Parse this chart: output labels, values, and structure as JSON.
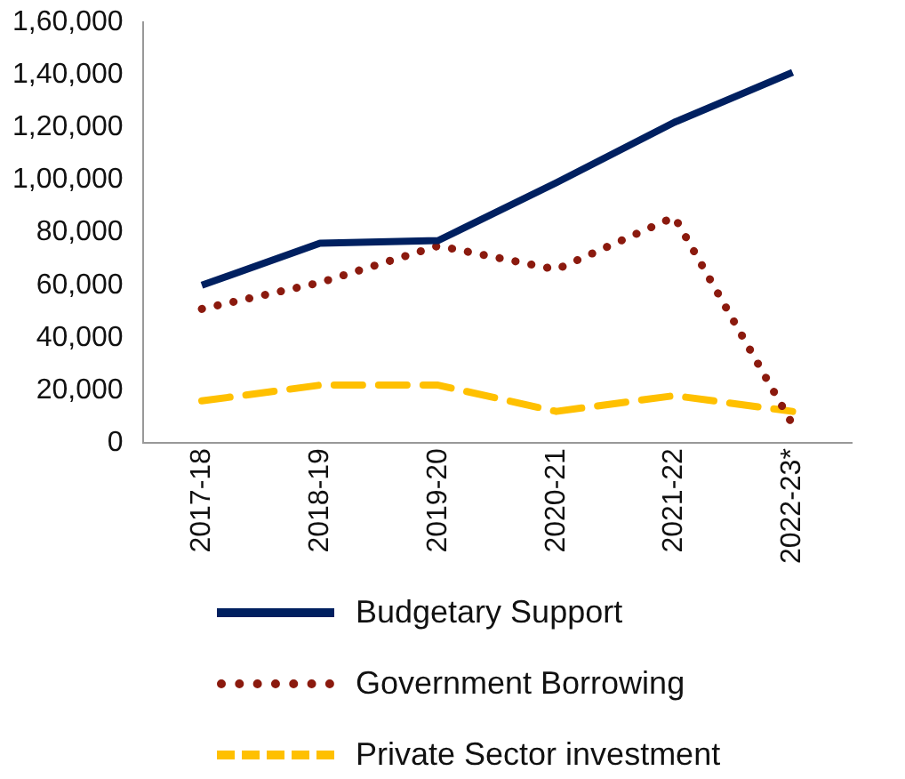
{
  "chart_data": {
    "type": "line",
    "categories": [
      "2017-18",
      "2018-19",
      "2019-20",
      "2020-21",
      "2021-22",
      "2022-23*"
    ],
    "ylim": [
      0,
      160000
    ],
    "yticks": [
      0,
      {
        "value": 20000,
        "label": "20,000"
      },
      {
        "value": 40000,
        "label": "40,000"
      },
      {
        "value": 60000,
        "label": "60,000"
      },
      {
        "value": 80000,
        "label": "80,000"
      },
      {
        "value": 100000,
        "label": "1,00,000"
      },
      {
        "value": 120000,
        "label": "1,20,000"
      },
      {
        "value": 140000,
        "label": "1,40,000"
      },
      {
        "value": 160000,
        "label": "1,60,000"
      }
    ],
    "grid": false,
    "legend": "bottom",
    "marker": "none",
    "series": [
      {
        "name": "Budgetary Support",
        "color": "#002060",
        "line_style": "solid",
        "values": [
          60000,
          76000,
          77000,
          99000,
          122000,
          141000
        ]
      },
      {
        "name": "Government Borrowing",
        "color": "#8b1a0e",
        "line_style": "dotted",
        "values": [
          51000,
          61000,
          75000,
          66000,
          86000,
          7000
        ]
      },
      {
        "name": "Private Sector investment",
        "color": "#ffc000",
        "line_style": "dashed",
        "values": [
          16000,
          22000,
          22000,
          12000,
          18000,
          12000
        ]
      }
    ]
  }
}
